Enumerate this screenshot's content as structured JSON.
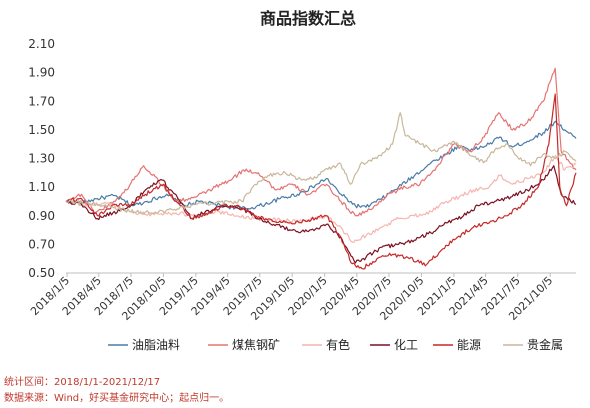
{
  "chart_data": {
    "type": "line",
    "title": "商品指数汇总",
    "ylim": [
      0.5,
      2.1
    ],
    "yticks": [
      "2.10",
      "1.90",
      "1.70",
      "1.50",
      "1.30",
      "1.10",
      "0.90",
      "0.70",
      "0.50"
    ],
    "xlim": [
      "2018-01-02",
      "2021-12-17"
    ],
    "xticks": [
      "2018/1/5",
      "2018/4/5",
      "2018/7/5",
      "2018/10/5",
      "2019/1/5",
      "2019/4/5",
      "2019/7/5",
      "2019/10/5",
      "2020/1/5",
      "2020/4/5",
      "2020/7/5",
      "2020/10/5",
      "2021/1/5",
      "2021/4/5",
      "2021/7/5",
      "2021/10/5"
    ],
    "grid": false,
    "legend_position": "bottom",
    "series": [
      {
        "name": "油脂油料",
        "color": "#4a7ba7",
        "points": [
          [
            "2018-01-02",
            1.0
          ],
          [
            "2018-02-15",
            0.99
          ],
          [
            "2018-04-01",
            1.02
          ],
          [
            "2018-05-20",
            1.04
          ],
          [
            "2018-07-10",
            0.97
          ],
          [
            "2018-08-20",
            1.0
          ],
          [
            "2018-10-15",
            1.05
          ],
          [
            "2018-12-01",
            0.97
          ],
          [
            "2019-01-15",
            1.0
          ],
          [
            "2019-03-01",
            0.98
          ],
          [
            "2019-04-15",
            0.96
          ],
          [
            "2019-06-01",
            0.95
          ],
          [
            "2019-07-20",
            0.98
          ],
          [
            "2019-09-01",
            1.02
          ],
          [
            "2019-10-20",
            1.05
          ],
          [
            "2019-12-01",
            1.1
          ],
          [
            "2020-01-10",
            1.16
          ],
          [
            "2020-02-20",
            1.05
          ],
          [
            "2020-04-01",
            0.97
          ],
          [
            "2020-05-01",
            0.96
          ],
          [
            "2020-06-15",
            1.02
          ],
          [
            "2020-08-01",
            1.1
          ],
          [
            "2020-09-15",
            1.18
          ],
          [
            "2020-11-01",
            1.27
          ],
          [
            "2020-12-15",
            1.33
          ],
          [
            "2021-01-20",
            1.39
          ],
          [
            "2021-03-01",
            1.36
          ],
          [
            "2021-04-15",
            1.4
          ],
          [
            "2021-05-15",
            1.45
          ],
          [
            "2021-06-20",
            1.38
          ],
          [
            "2021-08-01",
            1.42
          ],
          [
            "2021-09-15",
            1.48
          ],
          [
            "2021-10-20",
            1.56
          ],
          [
            "2021-11-15",
            1.5
          ],
          [
            "2021-12-17",
            1.44
          ]
        ]
      },
      {
        "name": "煤焦钢矿",
        "color": "#e57373",
        "points": [
          [
            "2018-01-02",
            1.0
          ],
          [
            "2018-02-15",
            1.05
          ],
          [
            "2018-03-25",
            0.92
          ],
          [
            "2018-05-01",
            0.97
          ],
          [
            "2018-06-15",
            1.06
          ],
          [
            "2018-08-10",
            1.25
          ],
          [
            "2018-09-20",
            1.15
          ],
          [
            "2018-11-10",
            1.0
          ],
          [
            "2019-01-05",
            1.03
          ],
          [
            "2019-03-01",
            1.1
          ],
          [
            "2019-04-15",
            1.15
          ],
          [
            "2019-05-20",
            1.22
          ],
          [
            "2019-07-01",
            1.2
          ],
          [
            "2019-08-20",
            1.08
          ],
          [
            "2019-10-01",
            1.12
          ],
          [
            "2019-11-20",
            1.05
          ],
          [
            "2020-01-10",
            1.12
          ],
          [
            "2020-02-20",
            1.0
          ],
          [
            "2020-04-01",
            0.9
          ],
          [
            "2020-05-20",
            0.95
          ],
          [
            "2020-07-01",
            1.05
          ],
          [
            "2020-08-20",
            1.1
          ],
          [
            "2020-10-01",
            1.12
          ],
          [
            "2020-11-20",
            1.25
          ],
          [
            "2021-01-05",
            1.4
          ],
          [
            "2021-02-20",
            1.35
          ],
          [
            "2021-04-01",
            1.45
          ],
          [
            "2021-05-12",
            1.62
          ],
          [
            "2021-06-20",
            1.5
          ],
          [
            "2021-08-01",
            1.55
          ],
          [
            "2021-09-15",
            1.7
          ],
          [
            "2021-10-19",
            1.93
          ],
          [
            "2021-11-05",
            1.35
          ],
          [
            "2021-12-17",
            1.22
          ]
        ]
      },
      {
        "name": "有色",
        "color": "#f4b6b0",
        "points": [
          [
            "2018-01-02",
            1.0
          ],
          [
            "2018-03-01",
            0.97
          ],
          [
            "2018-05-01",
            0.99
          ],
          [
            "2018-07-01",
            0.93
          ],
          [
            "2018-09-01",
            0.91
          ],
          [
            "2018-11-01",
            0.92
          ],
          [
            "2019-01-05",
            0.9
          ],
          [
            "2019-03-01",
            0.93
          ],
          [
            "2019-05-01",
            0.9
          ],
          [
            "2019-07-01",
            0.88
          ],
          [
            "2019-09-01",
            0.87
          ],
          [
            "2019-11-01",
            0.86
          ],
          [
            "2020-01-10",
            0.9
          ],
          [
            "2020-02-20",
            0.82
          ],
          [
            "2020-03-20",
            0.72
          ],
          [
            "2020-05-01",
            0.76
          ],
          [
            "2020-06-15",
            0.82
          ],
          [
            "2020-08-01",
            0.88
          ],
          [
            "2020-09-15",
            0.9
          ],
          [
            "2020-11-01",
            0.93
          ],
          [
            "2020-12-15",
            1.0
          ],
          [
            "2021-01-20",
            1.03
          ],
          [
            "2021-03-01",
            1.08
          ],
          [
            "2021-04-15",
            1.1
          ],
          [
            "2021-05-15",
            1.18
          ],
          [
            "2021-06-20",
            1.12
          ],
          [
            "2021-08-01",
            1.16
          ],
          [
            "2021-09-15",
            1.2
          ],
          [
            "2021-10-20",
            1.32
          ],
          [
            "2021-11-15",
            1.22
          ],
          [
            "2021-12-17",
            1.26
          ]
        ]
      },
      {
        "name": "化工",
        "color": "#7a1020",
        "points": [
          [
            "2018-01-02",
            1.0
          ],
          [
            "2018-02-15",
            0.98
          ],
          [
            "2018-04-01",
            0.88
          ],
          [
            "2018-05-15",
            0.92
          ],
          [
            "2018-07-01",
            0.96
          ],
          [
            "2018-08-15",
            1.08
          ],
          [
            "2018-10-01",
            1.15
          ],
          [
            "2018-11-15",
            1.02
          ],
          [
            "2018-12-25",
            0.88
          ],
          [
            "2019-02-01",
            0.93
          ],
          [
            "2019-04-01",
            0.97
          ],
          [
            "2019-05-15",
            0.95
          ],
          [
            "2019-06-20",
            0.9
          ],
          [
            "2019-08-01",
            0.85
          ],
          [
            "2019-10-01",
            0.8
          ],
          [
            "2019-11-20",
            0.79
          ],
          [
            "2020-01-10",
            0.84
          ],
          [
            "2020-02-20",
            0.75
          ],
          [
            "2020-04-01",
            0.57
          ],
          [
            "2020-05-01",
            0.61
          ],
          [
            "2020-06-15",
            0.68
          ],
          [
            "2020-08-01",
            0.7
          ],
          [
            "2020-09-15",
            0.73
          ],
          [
            "2020-11-01",
            0.78
          ],
          [
            "2020-12-15",
            0.85
          ],
          [
            "2021-02-01",
            0.9
          ],
          [
            "2021-03-15",
            0.97
          ],
          [
            "2021-05-01",
            1.0
          ],
          [
            "2021-06-15",
            1.03
          ],
          [
            "2021-08-01",
            1.08
          ],
          [
            "2021-09-15",
            1.15
          ],
          [
            "2021-10-15",
            1.25
          ],
          [
            "2021-11-05",
            1.05
          ],
          [
            "2021-12-17",
            0.98
          ]
        ]
      },
      {
        "name": "能源",
        "color": "#c62828",
        "points": [
          [
            "2018-01-02",
            1.0
          ],
          [
            "2018-02-15",
            1.02
          ],
          [
            "2018-04-01",
            0.9
          ],
          [
            "2018-05-20",
            0.98
          ],
          [
            "2018-07-01",
            0.97
          ],
          [
            "2018-08-15",
            1.05
          ],
          [
            "2018-10-05",
            1.12
          ],
          [
            "2018-11-10",
            1.0
          ],
          [
            "2018-12-25",
            0.88
          ],
          [
            "2019-02-15",
            0.92
          ],
          [
            "2019-04-01",
            0.98
          ],
          [
            "2019-05-20",
            0.95
          ],
          [
            "2019-06-20",
            0.9
          ],
          [
            "2019-08-15",
            0.86
          ],
          [
            "2019-10-01",
            0.85
          ],
          [
            "2019-11-20",
            0.87
          ],
          [
            "2020-01-10",
            0.9
          ],
          [
            "2020-02-20",
            0.75
          ],
          [
            "2020-03-20",
            0.57
          ],
          [
            "2020-04-20",
            0.53
          ],
          [
            "2020-06-01",
            0.6
          ],
          [
            "2020-07-15",
            0.63
          ],
          [
            "2020-09-01",
            0.6
          ],
          [
            "2020-10-20",
            0.56
          ],
          [
            "2020-12-01",
            0.66
          ],
          [
            "2021-01-15",
            0.75
          ],
          [
            "2021-03-01",
            0.82
          ],
          [
            "2021-04-15",
            0.85
          ],
          [
            "2021-06-01",
            0.9
          ],
          [
            "2021-07-15",
            0.97
          ],
          [
            "2021-09-01",
            1.1
          ],
          [
            "2021-10-01",
            1.4
          ],
          [
            "2021-10-19",
            1.75
          ],
          [
            "2021-11-01",
            1.1
          ],
          [
            "2021-11-20",
            0.97
          ],
          [
            "2021-12-17",
            1.2
          ]
        ]
      },
      {
        "name": "贵金属",
        "color": "#c8b79a",
        "points": [
          [
            "2018-01-02",
            1.0
          ],
          [
            "2018-03-01",
            0.99
          ],
          [
            "2018-05-01",
            0.97
          ],
          [
            "2018-07-01",
            0.93
          ],
          [
            "2018-09-01",
            0.92
          ],
          [
            "2018-11-01",
            0.94
          ],
          [
            "2019-01-05",
            0.98
          ],
          [
            "2019-03-01",
            0.99
          ],
          [
            "2019-05-15",
            1.0
          ],
          [
            "2019-06-15",
            1.1
          ],
          [
            "2019-08-01",
            1.18
          ],
          [
            "2019-09-15",
            1.2
          ],
          [
            "2019-11-01",
            1.15
          ],
          [
            "2019-12-15",
            1.17
          ],
          [
            "2020-01-10",
            1.23
          ],
          [
            "2020-02-20",
            1.26
          ],
          [
            "2020-03-18",
            1.12
          ],
          [
            "2020-04-15",
            1.26
          ],
          [
            "2020-06-01",
            1.3
          ],
          [
            "2020-07-15",
            1.4
          ],
          [
            "2020-08-06",
            1.62
          ],
          [
            "2020-08-20",
            1.46
          ],
          [
            "2020-10-01",
            1.4
          ],
          [
            "2020-11-15",
            1.35
          ],
          [
            "2021-01-05",
            1.42
          ],
          [
            "2021-02-15",
            1.34
          ],
          [
            "2021-03-30",
            1.27
          ],
          [
            "2021-05-01",
            1.36
          ],
          [
            "2021-06-01",
            1.4
          ],
          [
            "2021-07-01",
            1.32
          ],
          [
            "2021-08-10",
            1.25
          ],
          [
            "2021-09-15",
            1.33
          ],
          [
            "2021-10-20",
            1.3
          ],
          [
            "2021-11-15",
            1.35
          ],
          [
            "2021-12-17",
            1.28
          ]
        ]
      }
    ]
  },
  "footer": {
    "range": "统计区间：2018/1/1-2021/12/17",
    "source": "数据来源：Wind，好买基金研究中心；起点归一。"
  }
}
